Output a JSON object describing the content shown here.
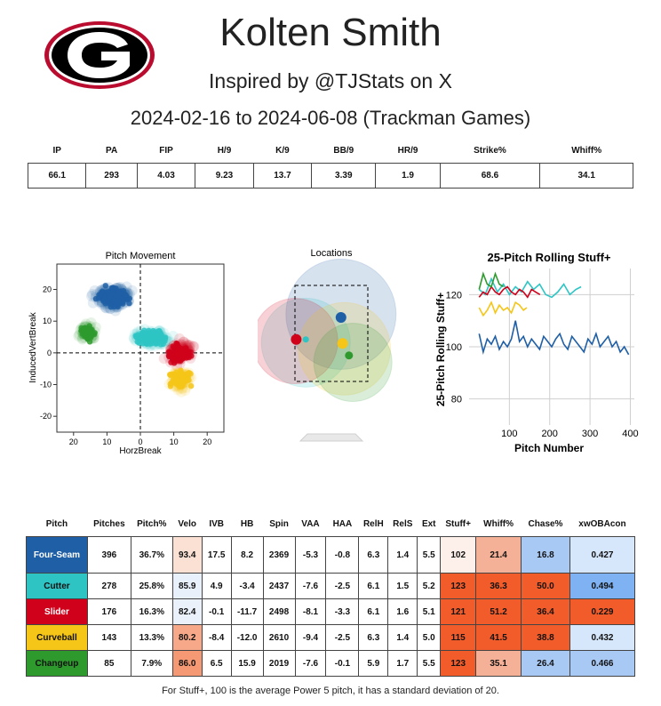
{
  "header": {
    "logo_letter": "G",
    "player_name": "Kolten Smith",
    "subtitle": "Inspired by @TJStats on X",
    "date_range": "2024-02-16 to 2024-06-08 (Trackman Games)"
  },
  "summary": {
    "columns": [
      "IP",
      "PA",
      "FIP",
      "H/9",
      "K/9",
      "BB/9",
      "HR/9",
      "Strike%",
      "Whiff%"
    ],
    "values": [
      "66.1",
      "293",
      "4.03",
      "9.23",
      "13.7",
      "3.39",
      "1.9",
      "68.6",
      "34.1"
    ]
  },
  "colors": {
    "four_seam": "#1f5fa6",
    "cutter": "#2ec4c4",
    "slider": "#d0021b",
    "curveball": "#f5c518",
    "changeup": "#2e9a2e",
    "logo_red": "#ba0c2f"
  },
  "chart_data": [
    {
      "type": "scatter",
      "title": "Pitch Movement",
      "xlabel": "HorzBreak",
      "ylabel": "InducedVertBreak",
      "xlim": [
        25,
        -25
      ],
      "ylim": [
        -25,
        28
      ],
      "xticks": [
        "20",
        "10",
        "0",
        "10",
        "20"
      ],
      "yticks": [
        "20",
        "10",
        "0",
        "-10",
        "-20"
      ],
      "clusters": [
        {
          "name": "Four-Seam",
          "color": "#1f5fa6",
          "cx": 8.2,
          "cy": 17.5,
          "sx": 4.0,
          "sy": 2.6
        },
        {
          "name": "Cutter",
          "color": "#2ec4c4",
          "cx": -3.4,
          "cy": 4.9,
          "sx": 4.2,
          "sy": 2.3
        },
        {
          "name": "Slider",
          "color": "#d0021b",
          "cx": -11.7,
          "cy": -0.1,
          "sx": 3.2,
          "sy": 3.2
        },
        {
          "name": "Curveball",
          "color": "#f5c518",
          "cx": -12.0,
          "cy": -8.4,
          "sx": 2.8,
          "sy": 2.6
        },
        {
          "name": "Changeup",
          "color": "#2e9a2e",
          "cx": 15.9,
          "cy": 6.5,
          "sx": 2.0,
          "sy": 2.4
        }
      ]
    },
    {
      "type": "scatter",
      "title": "Locations",
      "points": [
        {
          "name": "Four-Seam",
          "color": "#1f5fa6",
          "x": 0.3,
          "z": 2.9
        },
        {
          "name": "Cutter",
          "color": "#2ec4c4",
          "x": -0.8,
          "z": 2.35
        },
        {
          "name": "Slider",
          "color": "#d0021b",
          "x": -1.1,
          "z": 2.35
        },
        {
          "name": "Curveball",
          "color": "#f5c518",
          "x": 0.35,
          "z": 2.25
        },
        {
          "name": "Changeup",
          "color": "#2e9a2e",
          "x": 0.55,
          "z": 1.95
        }
      ]
    },
    {
      "type": "line",
      "title": "25-Pitch Rolling Stuff+",
      "xlabel": "Pitch Number",
      "ylabel": "25-Pitch Rolling Stuff+",
      "xlim": [
        0,
        410
      ],
      "ylim": [
        70,
        130
      ],
      "xticks": [
        100,
        200,
        300,
        400
      ],
      "yticks": [
        80,
        100,
        120
      ],
      "series": [
        {
          "name": "Four-Seam",
          "color": "#1f5fa6",
          "x": [
            25,
            35,
            45,
            55,
            65,
            75,
            85,
            95,
            105,
            115,
            125,
            135,
            145,
            155,
            165,
            175,
            185,
            195,
            205,
            215,
            225,
            235,
            245,
            255,
            265,
            275,
            285,
            295,
            305,
            315,
            325,
            345,
            355,
            365,
            375,
            385,
            396
          ],
          "y": [
            105,
            98,
            103,
            101,
            104,
            99,
            102,
            100,
            103,
            110,
            102,
            104,
            100,
            103,
            101,
            99,
            104,
            102,
            100,
            103,
            105,
            101,
            99,
            104,
            102,
            100,
            98,
            103,
            101,
            105,
            100,
            104,
            100,
            102,
            98,
            100,
            97
          ]
        },
        {
          "name": "Cutter",
          "color": "#2ec4c4",
          "x": [
            25,
            40,
            55,
            70,
            85,
            100,
            115,
            130,
            145,
            160,
            175,
            190,
            205,
            220,
            235,
            250,
            265,
            278
          ],
          "y": [
            122,
            120,
            126,
            121,
            124,
            120,
            123,
            121,
            125,
            122,
            124,
            120,
            119,
            121,
            124,
            120,
            122,
            123
          ]
        },
        {
          "name": "Slider",
          "color": "#d0021b",
          "x": [
            25,
            35,
            45,
            55,
            65,
            75,
            85,
            95,
            105,
            115,
            125,
            135,
            145,
            155,
            165,
            176
          ],
          "y": [
            119,
            121,
            120,
            123,
            121,
            120,
            122,
            123,
            121,
            120,
            122,
            121,
            119,
            122,
            121,
            120
          ]
        },
        {
          "name": "Curveball",
          "color": "#f5c518",
          "x": [
            25,
            35,
            45,
            55,
            65,
            75,
            85,
            95,
            105,
            115,
            125,
            135,
            143
          ],
          "y": [
            115,
            112,
            114,
            117,
            113,
            116,
            114,
            115,
            113,
            117,
            116,
            114,
            115
          ]
        },
        {
          "name": "Changeup",
          "color": "#2e9a2e",
          "x": [
            25,
            35,
            45,
            55,
            65,
            75,
            85
          ],
          "y": [
            122,
            128,
            124,
            123,
            128,
            124,
            123
          ]
        }
      ]
    }
  ],
  "pitch_table": {
    "columns": [
      "Pitch",
      "Pitches",
      "Pitch%",
      "Velo",
      "IVB",
      "HB",
      "Spin",
      "VAA",
      "HAA",
      "RelH",
      "RelS",
      "Ext",
      "Stuff+",
      "Whiff%",
      "Chase%",
      "xwOBAcon"
    ],
    "rows": [
      {
        "pitch": "Four-Seam",
        "pitches": "396",
        "pct": "36.7%",
        "velo": "93.4",
        "ivb": "17.5",
        "hb": "8.2",
        "spin": "2369",
        "vaa": "-5.3",
        "haa": "-0.8",
        "relh": "6.3",
        "rels": "1.4",
        "ext": "5.5",
        "stuff": "102",
        "whiff": "21.4",
        "chase": "16.8",
        "xwoba": "0.427",
        "name_bg": "#1f5fa6",
        "name_fg": "#ffffff",
        "velo_bg": "#fbe1d4",
        "stuff_bg": "#fdf0ea",
        "whiff_bg": "#f4b198",
        "chase_bg": "#a9c9f5",
        "xwoba_bg": "#d6e6fb"
      },
      {
        "pitch": "Cutter",
        "pitches": "278",
        "pct": "25.8%",
        "velo": "85.9",
        "ivb": "4.9",
        "hb": "-3.4",
        "spin": "2437",
        "vaa": "-7.6",
        "haa": "-2.5",
        "relh": "6.1",
        "rels": "1.5",
        "ext": "5.2",
        "stuff": "123",
        "whiff": "36.3",
        "chase": "50.0",
        "xwoba": "0.494",
        "name_bg": "#2ec4c4",
        "name_fg": "#111111",
        "velo_bg": "#e8f0fb",
        "stuff_bg": "#f25c2a",
        "whiff_bg": "#f25c2a",
        "chase_bg": "#f25c2a",
        "xwoba_bg": "#7fb2f2"
      },
      {
        "pitch": "Slider",
        "pitches": "176",
        "pct": "16.3%",
        "velo": "82.4",
        "ivb": "-0.1",
        "hb": "-11.7",
        "spin": "2498",
        "vaa": "-8.1",
        "haa": "-3.3",
        "relh": "6.1",
        "rels": "1.6",
        "ext": "5.1",
        "stuff": "121",
        "whiff": "51.2",
        "chase": "36.4",
        "xwoba": "0.229",
        "name_bg": "#d0021b",
        "name_fg": "#ffffff",
        "velo_bg": "#eaf1fb",
        "stuff_bg": "#f25c2a",
        "whiff_bg": "#f25c2a",
        "chase_bg": "#f25c2a",
        "xwoba_bg": "#f25c2a"
      },
      {
        "pitch": "Curveball",
        "pitches": "143",
        "pct": "13.3%",
        "velo": "80.2",
        "ivb": "-8.4",
        "hb": "-12.0",
        "spin": "2610",
        "vaa": "-9.4",
        "haa": "-2.5",
        "relh": "6.3",
        "rels": "1.4",
        "ext": "5.0",
        "stuff": "115",
        "whiff": "41.5",
        "chase": "38.8",
        "xwoba": "0.432",
        "name_bg": "#f5c518",
        "name_fg": "#111111",
        "velo_bg": "#f7a888",
        "stuff_bg": "#f25c2a",
        "whiff_bg": "#f25c2a",
        "chase_bg": "#f25c2a",
        "xwoba_bg": "#d6e6fb"
      },
      {
        "pitch": "Changeup",
        "pitches": "85",
        "pct": "7.9%",
        "velo": "86.0",
        "ivb": "6.5",
        "hb": "15.9",
        "spin": "2019",
        "vaa": "-7.6",
        "haa": "-0.1",
        "relh": "5.9",
        "rels": "1.7",
        "ext": "5.5",
        "stuff": "123",
        "whiff": "35.1",
        "chase": "26.4",
        "xwoba": "0.466",
        "name_bg": "#2e9a2e",
        "name_fg": "#111111",
        "velo_bg": "#f59874",
        "stuff_bg": "#f25c2a",
        "whiff_bg": "#f4b198",
        "chase_bg": "#a9c9f5",
        "xwoba_bg": "#a9c9f5"
      }
    ]
  },
  "footnote": "For Stuff+, 100 is the average Power 5 pitch, it has a standard deviation of 20."
}
